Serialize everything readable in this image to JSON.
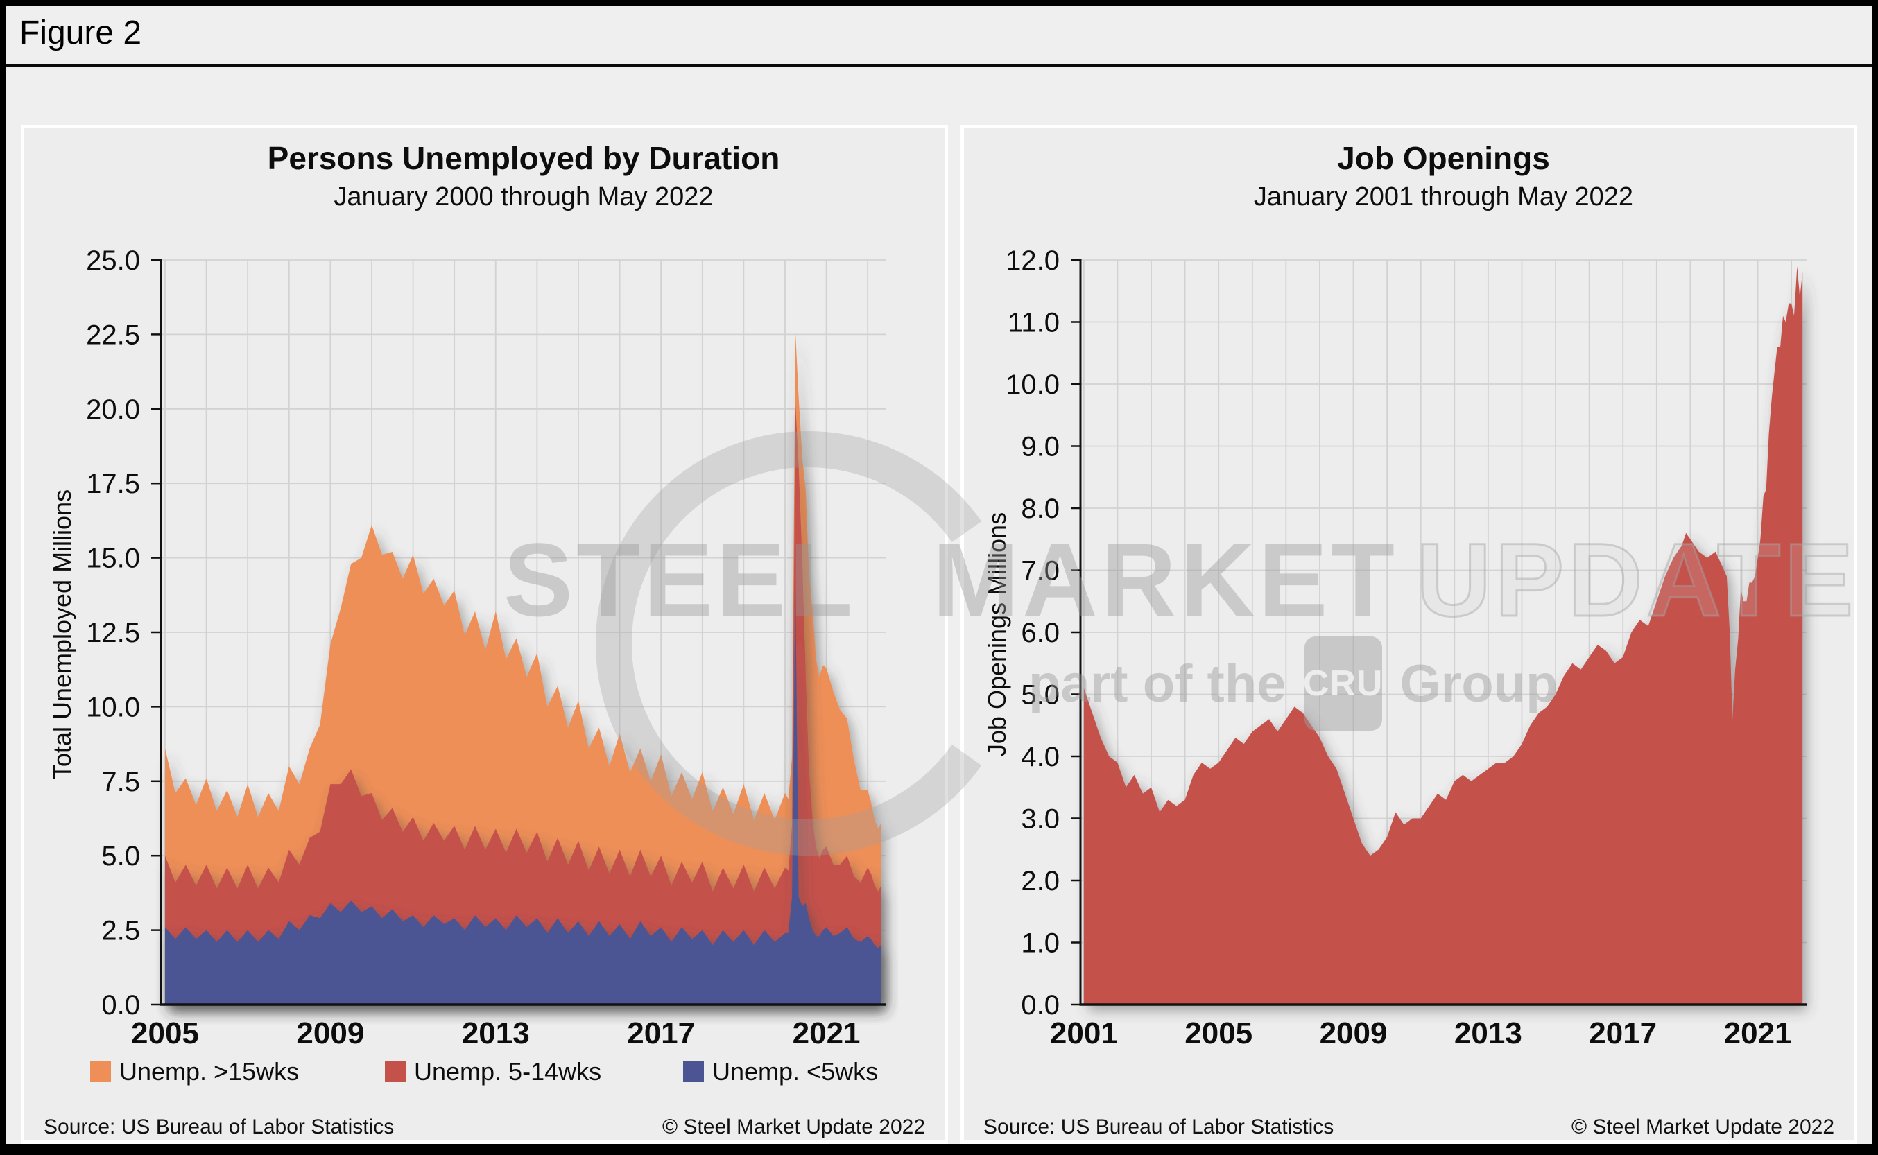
{
  "figure": {
    "label": "Figure 2"
  },
  "watermark": {
    "word1": "STEEL",
    "word2": "MARKET",
    "word3": "UPDATE",
    "tagline_prefix": "part of the",
    "tagline_box": "CRU",
    "tagline_suffix": "Group"
  },
  "colors": {
    "background": "#EFEFEF",
    "panel": "#EDEDED",
    "panel_border": "#FFFFFF",
    "gridline": "#D2D2D2",
    "axis": "#111111",
    "orange": "#EF8F58",
    "red": "#C5514B",
    "blue": "#4C5494",
    "job_openings_red": "#C5514B"
  },
  "panels": [
    {
      "title": "Persons Unemployed by Duration",
      "subtitle": "January 2000 through May 2022",
      "y_axis_label": "Total Unemployed Millions",
      "source": "Source: US Bureau of Labor Statistics",
      "copyright": "© Steel Market Update 2022",
      "legend": [
        {
          "label": "Unemp. >15wks",
          "color": "#EF8F58"
        },
        {
          "label": "Unemp. 5-14wks",
          "color": "#C5514B"
        },
        {
          "label": "Unemp. <5wks",
          "color": "#4C5494"
        }
      ]
    },
    {
      "title": "Job Openings",
      "subtitle": "January 2001 through May 2022",
      "y_axis_label": "Job Openings Millions",
      "source": "Source: US Bureau of Labor Statistics",
      "copyright": "© Steel Market Update 2022"
    }
  ],
  "chart_data": [
    {
      "type": "area",
      "stacked": true,
      "title": "Persons Unemployed by Duration",
      "subtitle": "January 2000 through May 2022",
      "xlabel": "",
      "ylabel": "Total Unemployed Millions",
      "xlim": [
        2004.9,
        2022.45
      ],
      "ylim": [
        0,
        25
      ],
      "xticks": [
        2005,
        2009,
        2013,
        2017,
        2021
      ],
      "yticks": [
        0,
        2.5,
        5,
        7.5,
        10,
        12.5,
        15,
        17.5,
        20,
        22.5,
        25
      ],
      "grid": true,
      "legend_position": "bottom",
      "x": [
        2005.0,
        2005.25,
        2005.5,
        2005.75,
        2006.0,
        2006.25,
        2006.5,
        2006.75,
        2007.0,
        2007.25,
        2007.5,
        2007.75,
        2008.0,
        2008.25,
        2008.5,
        2008.75,
        2009.0,
        2009.25,
        2009.5,
        2009.75,
        2010.0,
        2010.25,
        2010.5,
        2010.75,
        2011.0,
        2011.25,
        2011.5,
        2011.75,
        2012.0,
        2012.25,
        2012.5,
        2012.75,
        2013.0,
        2013.25,
        2013.5,
        2013.75,
        2014.0,
        2014.25,
        2014.5,
        2014.75,
        2015.0,
        2015.25,
        2015.5,
        2015.75,
        2016.0,
        2016.25,
        2016.5,
        2016.75,
        2017.0,
        2017.25,
        2017.5,
        2017.75,
        2018.0,
        2018.25,
        2018.5,
        2018.75,
        2019.0,
        2019.25,
        2019.5,
        2019.75,
        2020.0,
        2020.08,
        2020.17,
        2020.25,
        2020.33,
        2020.42,
        2020.5,
        2020.58,
        2020.67,
        2020.75,
        2020.83,
        2020.92,
        2021.0,
        2021.17,
        2021.33,
        2021.5,
        2021.67,
        2021.83,
        2022.0,
        2022.08,
        2022.17,
        2022.25,
        2022.33
      ],
      "series": [
        {
          "name": "Unemp. <5wks",
          "color": "#4C5494",
          "values": [
            2.6,
            2.2,
            2.6,
            2.2,
            2.5,
            2.1,
            2.5,
            2.1,
            2.5,
            2.1,
            2.5,
            2.2,
            2.8,
            2.5,
            3.0,
            2.9,
            3.4,
            3.1,
            3.5,
            3.1,
            3.3,
            2.9,
            3.2,
            2.8,
            3.0,
            2.6,
            3.0,
            2.7,
            2.9,
            2.5,
            3.0,
            2.6,
            2.9,
            2.5,
            3.0,
            2.6,
            2.9,
            2.4,
            2.9,
            2.4,
            2.8,
            2.3,
            2.8,
            2.3,
            2.7,
            2.2,
            2.8,
            2.3,
            2.6,
            2.1,
            2.6,
            2.2,
            2.5,
            2.0,
            2.5,
            2.1,
            2.5,
            2.0,
            2.5,
            2.1,
            2.4,
            2.4,
            3.6,
            14.3,
            3.6,
            3.3,
            3.4,
            2.9,
            2.5,
            2.3,
            2.3,
            2.5,
            2.6,
            2.3,
            2.4,
            2.6,
            2.2,
            2.1,
            2.3,
            2.2,
            2.0,
            1.9,
            2.0
          ]
        },
        {
          "name": "Unemp. 5-14wks",
          "color": "#C5514B",
          "values": [
            2.4,
            1.9,
            2.1,
            1.8,
            2.2,
            1.8,
            2.1,
            1.8,
            2.2,
            1.8,
            2.1,
            1.9,
            2.4,
            2.2,
            2.6,
            2.9,
            4.0,
            4.3,
            4.4,
            3.9,
            3.8,
            3.3,
            3.4,
            3.0,
            3.3,
            2.9,
            3.1,
            2.8,
            3.1,
            2.7,
            3.0,
            2.6,
            3.0,
            2.6,
            2.9,
            2.5,
            2.9,
            2.4,
            2.7,
            2.3,
            2.7,
            2.2,
            2.5,
            2.1,
            2.5,
            2.1,
            2.4,
            2.0,
            2.4,
            1.9,
            2.2,
            1.9,
            2.3,
            1.8,
            2.1,
            1.8,
            2.2,
            1.8,
            2.1,
            1.8,
            2.2,
            2.1,
            2.4,
            5.9,
            14.5,
            11.5,
            7.7,
            5.0,
            3.6,
            3.0,
            2.6,
            2.7,
            2.7,
            2.4,
            2.3,
            2.4,
            2.1,
            2.0,
            2.3,
            2.2,
            2.0,
            1.9,
            2.0
          ]
        },
        {
          "name": "Unemp. >15wks",
          "color": "#EF8F58",
          "values": [
            3.6,
            3.0,
            2.9,
            2.7,
            2.9,
            2.6,
            2.6,
            2.4,
            2.7,
            2.4,
            2.5,
            2.4,
            2.8,
            2.7,
            3.0,
            3.6,
            4.7,
            5.9,
            6.9,
            8.0,
            9.0,
            8.9,
            8.6,
            8.5,
            8.8,
            8.3,
            8.2,
            7.9,
            7.9,
            7.2,
            7.2,
            6.7,
            7.3,
            6.5,
            6.4,
            5.9,
            6.0,
            5.2,
            5.1,
            4.6,
            4.7,
            4.1,
            4.0,
            3.6,
            3.9,
            3.5,
            3.4,
            3.2,
            3.4,
            3.0,
            3.0,
            2.8,
            3.0,
            2.7,
            2.7,
            2.5,
            2.7,
            2.4,
            2.5,
            2.3,
            2.5,
            2.4,
            2.3,
            2.4,
            2.3,
            3.5,
            6.2,
            6.6,
            7.1,
            6.3,
            6.1,
            6.2,
            6.0,
            5.8,
            5.2,
            4.6,
            3.9,
            3.1,
            2.6,
            2.4,
            2.2,
            2.1,
            2.1
          ]
        }
      ]
    },
    {
      "type": "area",
      "stacked": false,
      "title": "Job Openings",
      "subtitle": "January 2001 through May 2022",
      "xlabel": "",
      "ylabel": "Job Openings Millions",
      "xlim": [
        2000.9,
        2022.45
      ],
      "ylim": [
        0,
        12
      ],
      "xticks": [
        2001,
        2005,
        2009,
        2013,
        2017,
        2021
      ],
      "yticks": [
        0,
        1,
        2,
        3,
        4,
        5,
        6,
        7,
        8,
        9,
        10,
        11,
        12
      ],
      "grid": true,
      "x": [
        2001.0,
        2001.25,
        2001.5,
        2001.75,
        2002.0,
        2002.25,
        2002.5,
        2002.75,
        2003.0,
        2003.25,
        2003.5,
        2003.75,
        2004.0,
        2004.25,
        2004.5,
        2004.75,
        2005.0,
        2005.25,
        2005.5,
        2005.75,
        2006.0,
        2006.25,
        2006.5,
        2006.75,
        2007.0,
        2007.25,
        2007.5,
        2007.75,
        2008.0,
        2008.25,
        2008.5,
        2008.75,
        2009.0,
        2009.25,
        2009.5,
        2009.75,
        2010.0,
        2010.25,
        2010.5,
        2010.75,
        2011.0,
        2011.25,
        2011.5,
        2011.75,
        2012.0,
        2012.25,
        2012.5,
        2012.75,
        2013.0,
        2013.25,
        2013.5,
        2013.75,
        2014.0,
        2014.25,
        2014.5,
        2014.75,
        2015.0,
        2015.25,
        2015.5,
        2015.75,
        2016.0,
        2016.25,
        2016.5,
        2016.75,
        2017.0,
        2017.25,
        2017.5,
        2017.75,
        2018.0,
        2018.25,
        2018.5,
        2018.75,
        2018.87,
        2019.0,
        2019.25,
        2019.5,
        2019.75,
        2020.0,
        2020.08,
        2020.17,
        2020.25,
        2020.33,
        2020.42,
        2020.5,
        2020.58,
        2020.67,
        2020.75,
        2020.83,
        2020.92,
        2021.0,
        2021.08,
        2021.17,
        2021.25,
        2021.33,
        2021.42,
        2021.5,
        2021.58,
        2021.67,
        2021.75,
        2021.83,
        2021.92,
        2022.0,
        2022.08,
        2022.17,
        2022.25,
        2022.33
      ],
      "series": [
        {
          "name": "Job Openings",
          "color": "#C5514B",
          "values": [
            5.1,
            4.7,
            4.3,
            4.0,
            3.9,
            3.5,
            3.7,
            3.4,
            3.5,
            3.1,
            3.3,
            3.2,
            3.3,
            3.7,
            3.9,
            3.8,
            3.9,
            4.1,
            4.3,
            4.2,
            4.4,
            4.5,
            4.6,
            4.4,
            4.6,
            4.8,
            4.7,
            4.5,
            4.3,
            4.0,
            3.8,
            3.4,
            3.0,
            2.6,
            2.4,
            2.5,
            2.7,
            3.1,
            2.9,
            3.0,
            3.0,
            3.2,
            3.4,
            3.3,
            3.6,
            3.7,
            3.6,
            3.7,
            3.8,
            3.9,
            3.9,
            4.0,
            4.2,
            4.5,
            4.7,
            4.8,
            5.0,
            5.3,
            5.5,
            5.4,
            5.6,
            5.8,
            5.7,
            5.5,
            5.6,
            6.0,
            6.2,
            6.1,
            6.5,
            6.9,
            7.2,
            7.4,
            7.6,
            7.5,
            7.3,
            7.2,
            7.3,
            7.0,
            6.9,
            6.0,
            4.6,
            5.4,
            5.9,
            6.7,
            6.5,
            6.5,
            6.8,
            6.8,
            6.9,
            7.2,
            7.5,
            8.2,
            8.3,
            9.2,
            9.8,
            10.2,
            10.6,
            10.6,
            11.1,
            11.0,
            11.3,
            11.3,
            11.1,
            11.9,
            11.4,
            11.8
          ]
        }
      ]
    }
  ]
}
